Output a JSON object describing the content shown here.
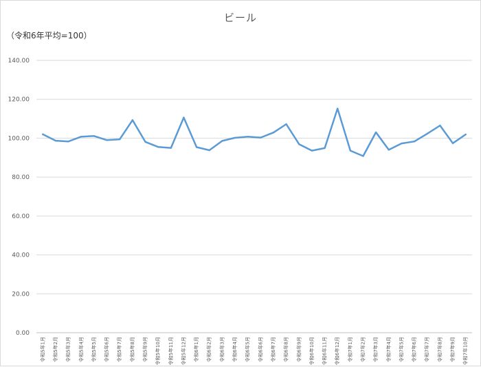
{
  "chart_data": {
    "type": "line",
    "title": "ビール",
    "unit_label": "（令和6年平均=100）",
    "ylim": [
      0,
      140
    ],
    "y_ticks": [
      "0.00",
      "20.00",
      "40.00",
      "60.00",
      "80.00",
      "100.00",
      "120.00",
      "140.00"
    ],
    "grid": "horizontal",
    "legend": "none",
    "line_color": "#5b9bd5",
    "categories": [
      "令和5年1月",
      "令和5年2月",
      "令和5年3月",
      "令和5年4月",
      "令和5年5月",
      "令和5年6月",
      "令和5年7月",
      "令和5年8月",
      "令和5年9月",
      "令和5年10月",
      "令和5年11月",
      "令和5年12月",
      "令和6年1月",
      "令和6年2月",
      "令和6年3月",
      "令和6年4月",
      "令和6年5月",
      "令和6年6月",
      "令和6年7月",
      "令和6年8月",
      "令和6年9月",
      "令和6年10月",
      "令和6年11月",
      "令和6年12月",
      "令和7年1月",
      "令和7年2月",
      "令和7年3月",
      "令和7年4月",
      "令和7年5月",
      "令和7年6月",
      "令和7年7月",
      "令和7年8月",
      "令和7年9月",
      "令和7年10月"
    ],
    "values": [
      102.0,
      98.7,
      98.3,
      100.8,
      101.1,
      99.0,
      99.4,
      109.3,
      98.1,
      95.5,
      95.0,
      110.6,
      95.4,
      93.8,
      98.6,
      100.2,
      100.8,
      100.3,
      102.9,
      107.2,
      96.9,
      93.6,
      94.9,
      115.2,
      93.6,
      90.8,
      103.0,
      94.0,
      97.3,
      98.3,
      102.3,
      106.5,
      97.4,
      101.9
    ]
  }
}
